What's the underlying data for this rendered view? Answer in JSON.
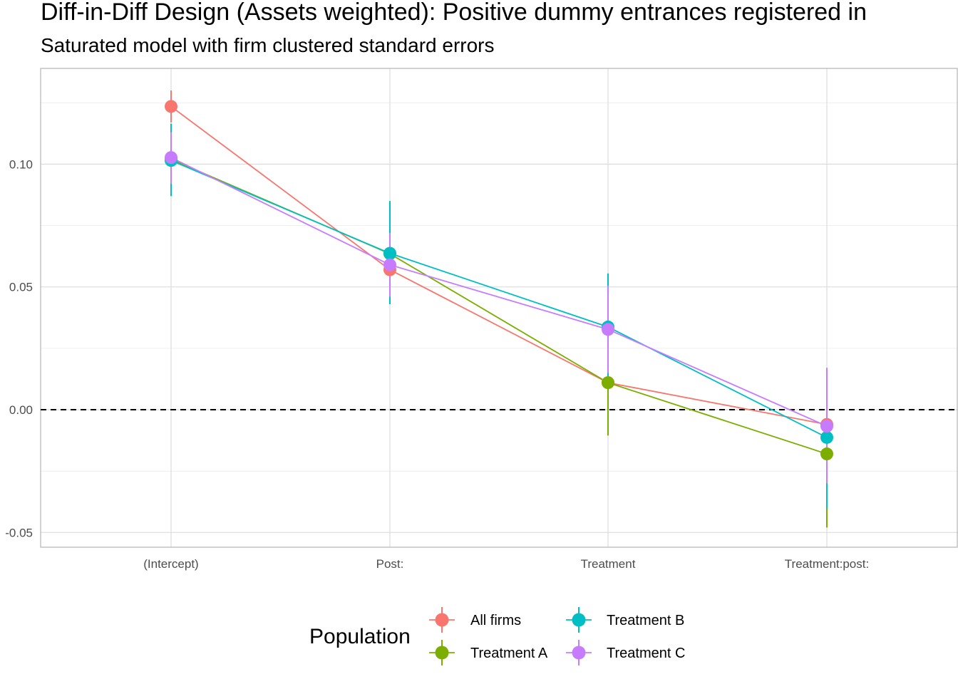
{
  "chart_data": {
    "type": "scatter",
    "title": "Diff-in-Diff Design (Assets weighted): Positive dummy entrances registered in",
    "subtitle": "Saturated model with firm clustered standard errors",
    "xlabel": "",
    "ylabel": "",
    "categories": [
      "(Intercept)",
      "Post:",
      "Treatment",
      "Treatment:post:"
    ],
    "y_ticks": [
      -0.05,
      0.0,
      0.05,
      0.1
    ],
    "y_tick_labels": [
      "-0.05",
      "0.00",
      "0.05",
      "0.10"
    ],
    "ylim": [
      -0.056,
      0.139
    ],
    "reference_line": 0,
    "grid": true,
    "legend": {
      "title": "Population",
      "position": "bottom"
    },
    "series": [
      {
        "name": "All firms",
        "color": "#F8766D",
        "values": [
          0.1235,
          0.057,
          0.011,
          -0.006
        ],
        "lower": [
          0.117,
          0.053,
          0.008,
          -0.01
        ],
        "upper": [
          0.13,
          0.061,
          0.014,
          -0.002
        ]
      },
      {
        "name": "Treatment A",
        "color": "#7CAE00",
        "values": [
          0.102,
          0.0635,
          0.011,
          -0.018
        ],
        "lower": [
          0.087,
          0.043,
          -0.0105,
          -0.048
        ],
        "upper": [
          0.1165,
          0.084,
          0.033,
          0.0115
        ]
      },
      {
        "name": "Treatment B",
        "color": "#00BFC4",
        "values": [
          0.1015,
          0.0637,
          0.0337,
          -0.0113
        ],
        "lower": [
          0.087,
          0.043,
          0.012,
          -0.04
        ],
        "upper": [
          0.1165,
          0.085,
          0.0555,
          0.017
        ]
      },
      {
        "name": "Treatment C",
        "color": "#C77CFF",
        "values": [
          0.1027,
          0.059,
          0.0327,
          -0.0067
        ],
        "lower": [
          0.092,
          0.046,
          0.015,
          -0.03
        ],
        "upper": [
          0.113,
          0.072,
          0.0505,
          0.017
        ]
      }
    ]
  }
}
